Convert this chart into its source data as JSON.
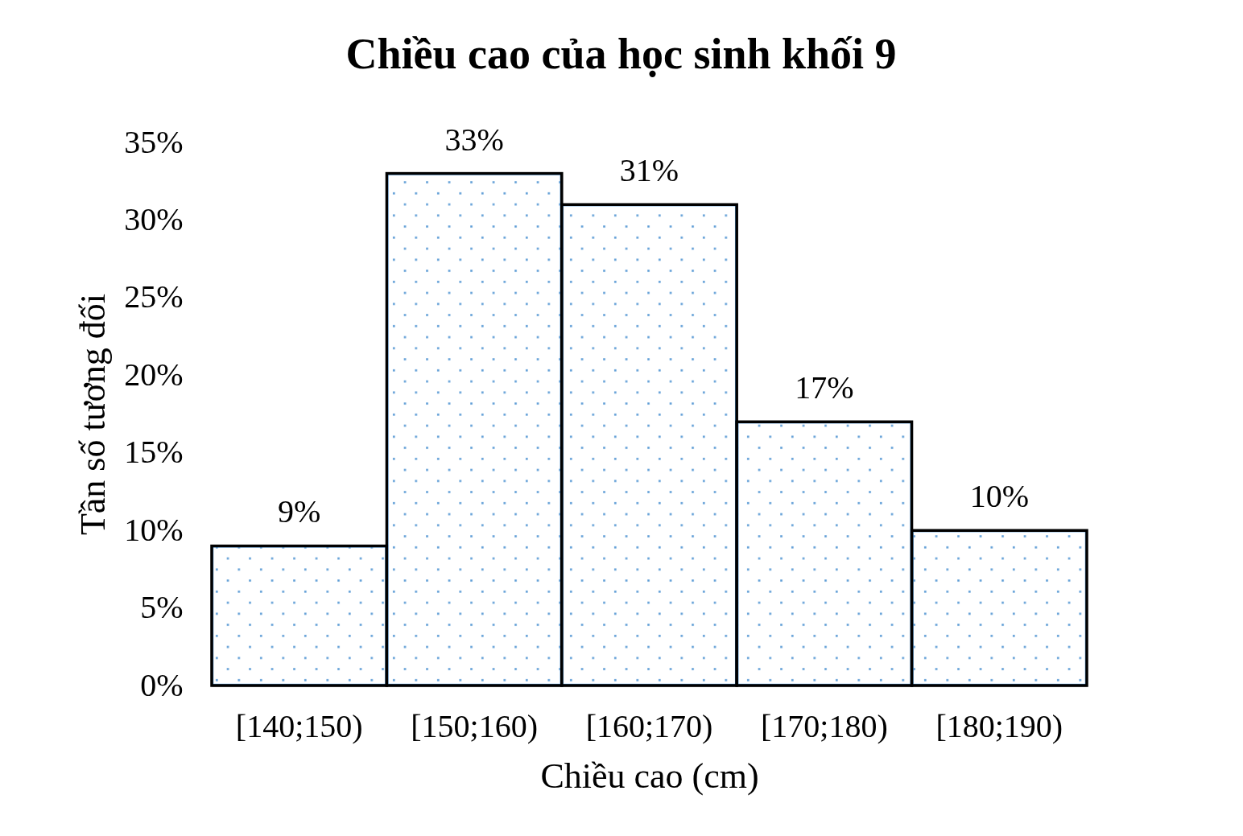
{
  "chart_data": {
    "type": "bar",
    "title": "Chiều cao của học sinh khối 9",
    "xlabel": "Chiều cao (cm)",
    "ylabel": "Tần số tương đối",
    "categories": [
      "[140;150)",
      "[150;160)",
      "[160;170)",
      "[170;180)",
      "[180;190)"
    ],
    "values": [
      9,
      33,
      31,
      17,
      10
    ],
    "value_labels": [
      "9%",
      "33%",
      "31%",
      "17%",
      "10%"
    ],
    "color": "#5b9bd5",
    "ylim": [
      0,
      35
    ],
    "yticks": [
      {
        "value": 0,
        "label": "0%"
      },
      {
        "value": 5,
        "label": "5%"
      },
      {
        "value": 10,
        "label": "10%"
      },
      {
        "value": 15,
        "label": "15%"
      },
      {
        "value": 20,
        "label": "20%"
      },
      {
        "value": 25,
        "label": "25%"
      },
      {
        "value": 30,
        "label": "30%"
      },
      {
        "value": 35,
        "label": "35%"
      }
    ],
    "grid": false
  }
}
